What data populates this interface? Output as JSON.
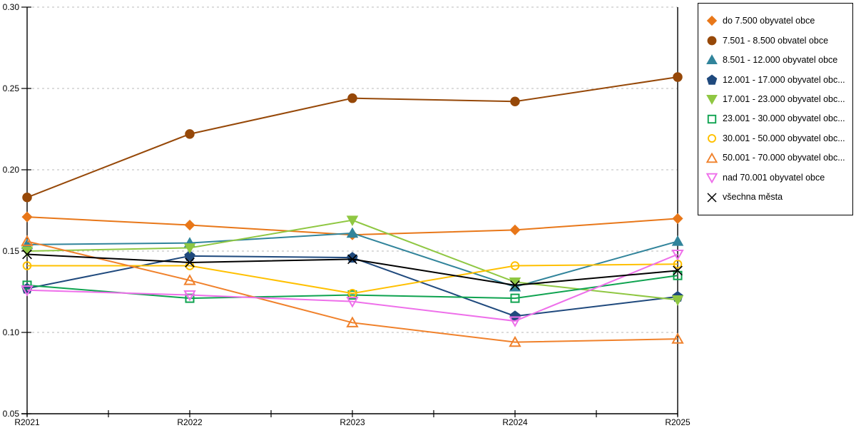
{
  "chart_data": {
    "type": "line",
    "title": "",
    "xlabel": "",
    "ylabel": "",
    "categories": [
      "R2021",
      "R2022",
      "R2023",
      "R2024",
      "R2025"
    ],
    "ylim": [
      0.05,
      0.3
    ],
    "ytick_values": [
      0.3,
      0.25,
      0.2,
      0.15,
      0.1,
      0.05
    ],
    "ytick_labels": [
      "0.30",
      "0.25",
      "0.20",
      "0.15",
      "0.10",
      "0.05"
    ],
    "grid": "horizontal-dashed",
    "grid_color": "#c8c8c8",
    "axis_color": "#000000",
    "legend_position": "outside-top-right",
    "series": [
      {
        "label": "do 7.500 obyvatel obce",
        "color": "#E87719",
        "marker": "diamond",
        "marker_fill": "filled",
        "values": [
          0.171,
          0.166,
          0.16,
          0.163,
          0.17
        ]
      },
      {
        "label": "7.501 - 8.500 obvatel obce",
        "color": "#964808",
        "marker": "circle",
        "marker_fill": "filled",
        "values": [
          0.183,
          0.222,
          0.244,
          0.242,
          0.257
        ]
      },
      {
        "label": "8.501 - 12.000 obyvatel obce",
        "color": "#31849B",
        "marker": "triangle-up",
        "marker_fill": "filled",
        "values": [
          0.154,
          0.155,
          0.161,
          0.128,
          0.156
        ]
      },
      {
        "label": "12.001 - 17.000 obyvatel obc...",
        "color": "#1F497D",
        "marker": "pentagon",
        "marker_fill": "filled",
        "values": [
          0.127,
          0.147,
          0.146,
          0.11,
          0.122
        ]
      },
      {
        "label": "17.001 - 23.000 obyvatel obc...",
        "color": "#8FC742",
        "marker": "triangle-down",
        "marker_fill": "filled",
        "values": [
          0.15,
          0.152,
          0.169,
          0.131,
          0.12
        ]
      },
      {
        "label": "23.001 - 30.000 obyvatel obc...",
        "color": "#0FA350",
        "marker": "square",
        "marker_fill": "hollow",
        "values": [
          0.129,
          0.121,
          0.123,
          0.121,
          0.135
        ]
      },
      {
        "label": "30.001 - 50.000 obyvatel obc...",
        "color": "#FFC000",
        "marker": "circle",
        "marker_fill": "hollow",
        "values": [
          0.141,
          0.141,
          0.124,
          0.141,
          0.142
        ]
      },
      {
        "label": "50.001 - 70.000 obyvatel obc...",
        "color": "#F0812B",
        "marker": "triangle-up",
        "marker_fill": "hollow",
        "values": [
          0.156,
          0.132,
          0.106,
          0.094,
          0.096
        ]
      },
      {
        "label": "nad 70.001 obyvatel obce",
        "color": "#EE6FEA",
        "marker": "triangle-down",
        "marker_fill": "hollow",
        "values": [
          0.126,
          0.123,
          0.119,
          0.107,
          0.148
        ]
      },
      {
        "label": "všechna města",
        "color": "#000000",
        "marker": "x",
        "marker_fill": "line",
        "values": [
          0.148,
          0.143,
          0.145,
          0.129,
          0.138
        ]
      }
    ]
  }
}
